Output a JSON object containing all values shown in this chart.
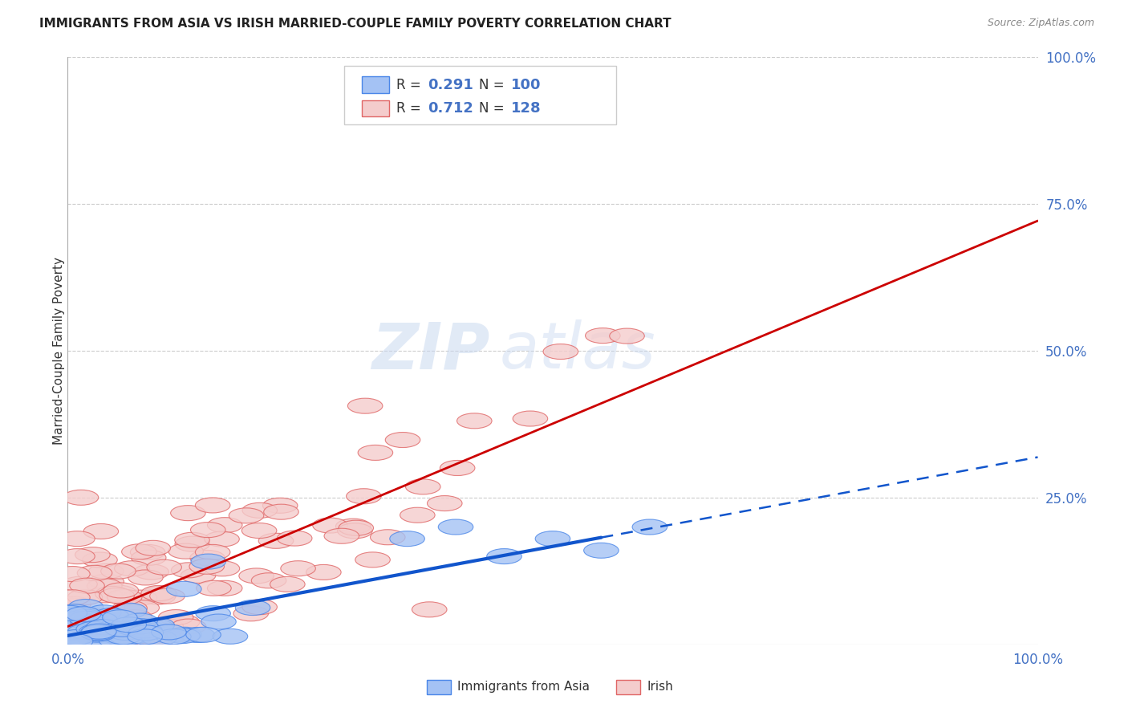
{
  "title": "IMMIGRANTS FROM ASIA VS IRISH MARRIED-COUPLE FAMILY POVERTY CORRELATION CHART",
  "source": "Source: ZipAtlas.com",
  "ylabel": "Married-Couple Family Poverty",
  "xlim": [
    0,
    1.0
  ],
  "ylim": [
    0,
    1.0
  ],
  "xticklabels": [
    "0.0%",
    "100.0%"
  ],
  "yticklabels": [
    "",
    "25.0%",
    "50.0%",
    "75.0%",
    "100.0%"
  ],
  "blue_color": "#a4c2f4",
  "pink_color": "#f4cccc",
  "blue_edge_color": "#4a86e8",
  "pink_edge_color": "#e06666",
  "blue_line_color": "#1155cc",
  "pink_line_color": "#cc0000",
  "watermark_zip": "ZIP",
  "watermark_atlas": "atlas",
  "legend_R1": "0.291",
  "legend_N1": "100",
  "legend_R2": "0.712",
  "legend_N2": "128",
  "legend_label1": "Immigrants from Asia",
  "legend_label2": "Irish",
  "blue_R": 0.291,
  "pink_R": 0.712,
  "n_blue": 100,
  "n_pink": 128
}
